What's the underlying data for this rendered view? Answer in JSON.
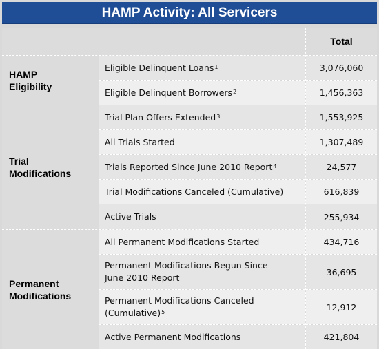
{
  "title": "HAMP Activity: All Servicers",
  "column_header": "Total",
  "groups": [
    {
      "label_lines": [
        "HAMP",
        "Eligibility"
      ],
      "rows": [
        {
          "metric": "Eligible Delinquent Loans",
          "sup": "1",
          "value": "3,076,060"
        },
        {
          "metric": "Eligible Delinquent Borrowers",
          "sup": "2",
          "value": "1,456,363"
        }
      ]
    },
    {
      "label_lines": [
        "Trial",
        "Modifications"
      ],
      "rows": [
        {
          "metric": "Trial Plan Offers Extended",
          "sup": "3",
          "value": "1,553,925"
        },
        {
          "metric": "All Trials Started",
          "sup": "",
          "value": "1,307,489"
        },
        {
          "metric": "Trials Reported Since June 2010 Report",
          "sup": "4",
          "value": "24,577"
        },
        {
          "metric": "Trial Modifications Canceled (Cumulative)",
          "sup": "",
          "value": "616,839"
        },
        {
          "metric": "Active Trials",
          "sup": "",
          "value": "255,934"
        }
      ]
    },
    {
      "label_lines": [
        "Permanent",
        "Modifications"
      ],
      "rows": [
        {
          "metric": "All Permanent Modifications Started",
          "sup": "",
          "value": "434,716"
        },
        {
          "metric": "Permanent Modifications Begun Since June 2010 Report",
          "sup": "",
          "value": "36,695"
        },
        {
          "metric": "Permanent Modifications Canceled (Cumulative)",
          "sup": "5",
          "value": "12,912"
        },
        {
          "metric": "Active Permanent Modifications",
          "sup": "",
          "value": "421,804"
        }
      ]
    }
  ]
}
